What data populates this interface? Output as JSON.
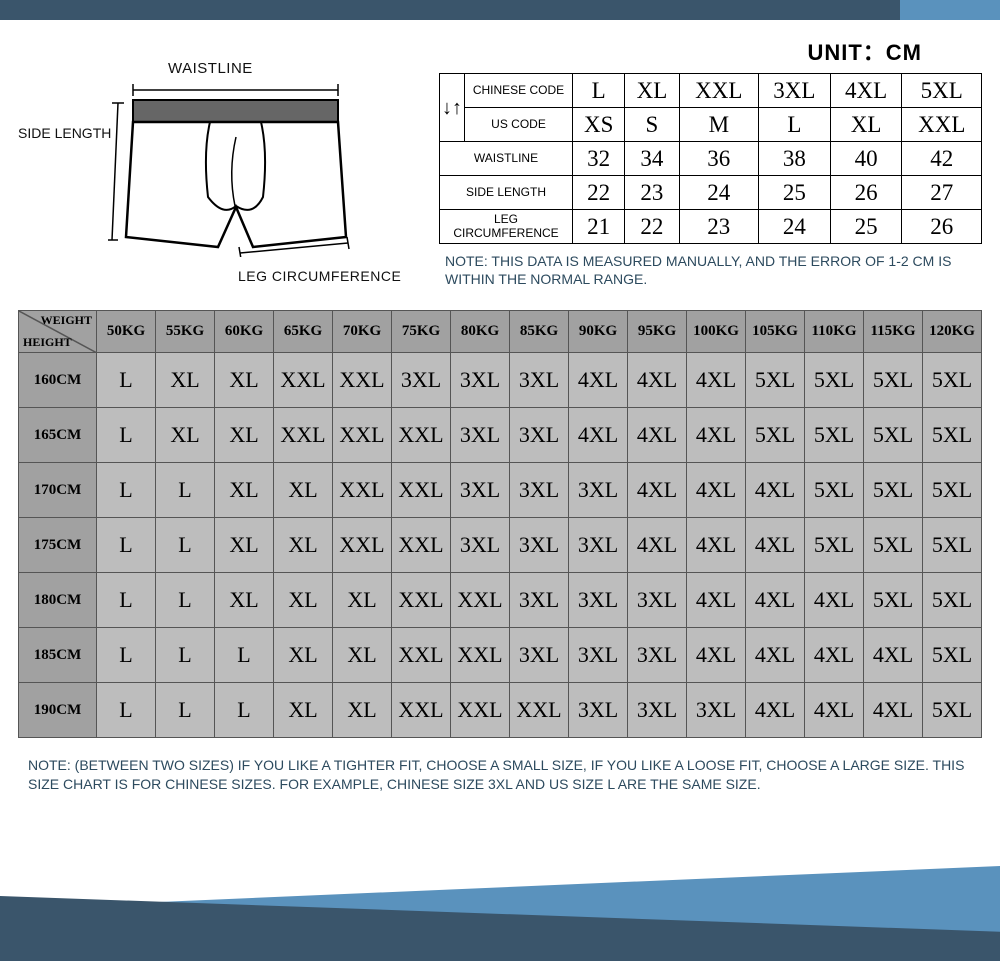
{
  "colors": {
    "bar_dark": "#3a556b",
    "bar_light": "#5a92bd",
    "header_gray": "#a1a1a1",
    "cell_gray": "#bdbdbd",
    "border": "#555555",
    "note_text": "#2c4a5e"
  },
  "diagram": {
    "waist_label": "WAISTLINE",
    "side_label": "SIDE LENGTH",
    "leg_label": "LEG CIRCUMFERENCE"
  },
  "unit_label": "UNIT：CM",
  "size_table": {
    "row_labels": {
      "chinese": "CHINESE CODE",
      "us": "US CODE",
      "waist": "WAISTLINE",
      "side": "SIDE LENGTH",
      "leg": "LEG CIRCUMFERENCE"
    },
    "chinese": [
      "L",
      "XL",
      "XXL",
      "3XL",
      "4XL",
      "5XL"
    ],
    "us": [
      "XS",
      "S",
      "M",
      "L",
      "XL",
      "XXL"
    ],
    "waist": [
      "32",
      "34",
      "36",
      "38",
      "40",
      "42"
    ],
    "side": [
      "22",
      "23",
      "24",
      "25",
      "26",
      "27"
    ],
    "leg": [
      "21",
      "22",
      "23",
      "24",
      "25",
      "26"
    ]
  },
  "note1": "NOTE: THIS DATA IS MEASURED MANUALLY, AND THE ERROR OF 1-2 CM IS WITHIN THE NORMAL RANGE.",
  "main_table": {
    "corner_weight": "WEIGHT",
    "corner_height": "HEIGHT",
    "weights": [
      "50KG",
      "55KG",
      "60KG",
      "65KG",
      "70KG",
      "75KG",
      "80KG",
      "85KG",
      "90KG",
      "95KG",
      "100KG",
      "105KG",
      "110KG",
      "115KG",
      "120KG"
    ],
    "heights": [
      "160CM",
      "165CM",
      "170CM",
      "175CM",
      "180CM",
      "185CM",
      "190CM"
    ],
    "rows": [
      [
        "L",
        "XL",
        "XL",
        "XXL",
        "XXL",
        "3XL",
        "3XL",
        "3XL",
        "4XL",
        "4XL",
        "4XL",
        "5XL",
        "5XL",
        "5XL",
        "5XL"
      ],
      [
        "L",
        "XL",
        "XL",
        "XXL",
        "XXL",
        "XXL",
        "3XL",
        "3XL",
        "4XL",
        "4XL",
        "4XL",
        "5XL",
        "5XL",
        "5XL",
        "5XL"
      ],
      [
        "L",
        "L",
        "XL",
        "XL",
        "XXL",
        "XXL",
        "3XL",
        "3XL",
        "3XL",
        "4XL",
        "4XL",
        "4XL",
        "5XL",
        "5XL",
        "5XL"
      ],
      [
        "L",
        "L",
        "XL",
        "XL",
        "XXL",
        "XXL",
        "3XL",
        "3XL",
        "3XL",
        "4XL",
        "4XL",
        "4XL",
        "5XL",
        "5XL",
        "5XL"
      ],
      [
        "L",
        "L",
        "XL",
        "XL",
        "XL",
        "XXL",
        "XXL",
        "3XL",
        "3XL",
        "3XL",
        "4XL",
        "4XL",
        "4XL",
        "5XL",
        "5XL"
      ],
      [
        "L",
        "L",
        "L",
        "XL",
        "XL",
        "XXL",
        "XXL",
        "3XL",
        "3XL",
        "3XL",
        "4XL",
        "4XL",
        "4XL",
        "4XL",
        "5XL"
      ],
      [
        "L",
        "L",
        "L",
        "XL",
        "XL",
        "XXL",
        "XXL",
        "XXL",
        "3XL",
        "3XL",
        "3XL",
        "4XL",
        "4XL",
        "4XL",
        "5XL"
      ]
    ]
  },
  "note2": "NOTE: (BETWEEN TWO SIZES) IF YOU LIKE A TIGHTER FIT, CHOOSE A SMALL SIZE, IF YOU LIKE A LOOSE FIT, CHOOSE A LARGE SIZE. THIS SIZE CHART IS FOR CHINESE SIZES. FOR EXAMPLE, CHINESE SIZE 3XL AND US SIZE L ARE THE SAME SIZE."
}
